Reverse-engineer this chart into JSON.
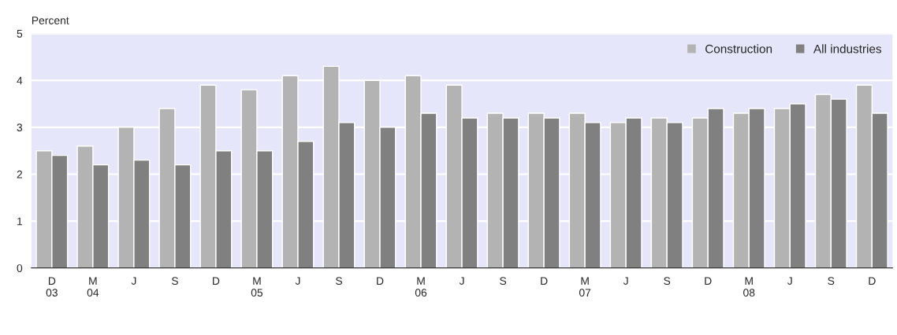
{
  "chart_data": {
    "type": "bar",
    "ylabel": "Percent",
    "categories": [
      "D\n03",
      "M\n04",
      "J",
      "S",
      "D",
      "M\n05",
      "J",
      "S",
      "D",
      "M\n06",
      "J",
      "S",
      "D",
      "M\n07",
      "J",
      "S",
      "D",
      "M\n08",
      "J",
      "S",
      "D"
    ],
    "series": [
      {
        "name": "Construction",
        "color": "#b3b3b3",
        "values": [
          2.5,
          2.6,
          3.0,
          3.4,
          3.9,
          3.8,
          4.1,
          4.3,
          4.0,
          4.1,
          3.9,
          3.3,
          3.3,
          3.3,
          3.1,
          3.2,
          3.2,
          3.3,
          3.4,
          3.7,
          3.9
        ]
      },
      {
        "name": "All industries",
        "color": "#808080",
        "values": [
          2.4,
          2.2,
          2.3,
          2.2,
          2.5,
          2.5,
          2.7,
          3.1,
          3.0,
          3.3,
          3.2,
          3.2,
          3.2,
          3.1,
          3.2,
          3.1,
          3.4,
          3.4,
          3.5,
          3.6,
          3.3
        ]
      }
    ],
    "ylim": [
      0,
      5
    ],
    "yticks": [
      0,
      1,
      2,
      3,
      4,
      5
    ],
    "grid": "y",
    "legend": "top right"
  }
}
